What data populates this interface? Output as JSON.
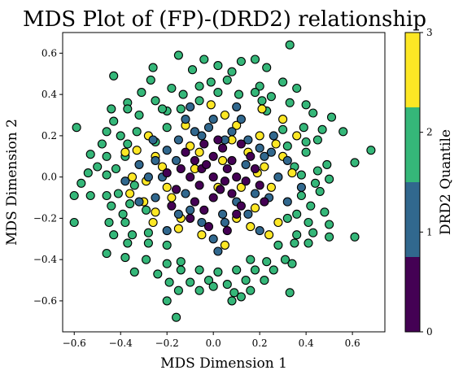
{
  "chart_data": {
    "type": "scatter",
    "title": "MDS Plot of (FP)-(DRD2) relationship",
    "xlabel": "MDS Dimension 1",
    "ylabel": "MDS Dimension 2",
    "xlim": [
      -0.65,
      0.74
    ],
    "ylim": [
      -0.75,
      0.7
    ],
    "xticks": [
      "−0.6",
      "−0.4",
      "−0.2",
      "0.0",
      "0.2",
      "0.4",
      "0.6"
    ],
    "xtick_values": [
      -0.6,
      -0.4,
      -0.2,
      0.0,
      0.2,
      0.4,
      0.6
    ],
    "yticks": [
      "−0.6",
      "−0.4",
      "−0.2",
      "0.0",
      "0.2",
      "0.4",
      "0.6"
    ],
    "ytick_values": [
      -0.6,
      -0.4,
      -0.2,
      0.0,
      0.2,
      0.4,
      0.6
    ],
    "grid": false,
    "marker_edge_color": "#000000",
    "colorbar": {
      "label": "DRD2 Quantile",
      "ticks": [
        "0",
        "1",
        "2",
        "3"
      ],
      "tick_values": [
        0,
        1,
        2,
        3
      ],
      "colors": [
        "#440154",
        "#31688e",
        "#35b779",
        "#fde725"
      ]
    },
    "points": [
      [
        0.33,
        0.64,
        2
      ],
      [
        -0.15,
        0.59,
        2
      ],
      [
        -0.04,
        0.57,
        2
      ],
      [
        0.12,
        0.56,
        2
      ],
      [
        0.18,
        0.57,
        2
      ],
      [
        -0.43,
        0.49,
        2
      ],
      [
        -0.26,
        0.53,
        2
      ],
      [
        0.02,
        0.54,
        2
      ],
      [
        0.23,
        0.53,
        2
      ],
      [
        -0.09,
        0.52,
        2
      ],
      [
        -0.27,
        0.47,
        2
      ],
      [
        -0.01,
        0.46,
        2
      ],
      [
        0.06,
        0.47,
        2
      ],
      [
        0.3,
        0.46,
        2
      ],
      [
        0.08,
        0.51,
        2
      ],
      [
        -0.31,
        0.41,
        2
      ],
      [
        -0.18,
        0.43,
        2
      ],
      [
        -0.06,
        0.44,
        2
      ],
      [
        0.2,
        0.44,
        2
      ],
      [
        0.02,
        0.41,
        2
      ],
      [
        0.36,
        0.43,
        2
      ],
      [
        -0.37,
        0.36,
        2
      ],
      [
        -0.25,
        0.37,
        2
      ],
      [
        0.11,
        0.4,
        2
      ],
      [
        0.18,
        0.41,
        2
      ],
      [
        0.25,
        0.39,
        2
      ],
      [
        -0.13,
        0.4,
        2
      ],
      [
        0.4,
        0.35,
        2
      ],
      [
        -0.44,
        0.33,
        2
      ],
      [
        -0.37,
        0.33,
        2
      ],
      [
        -0.2,
        0.32,
        2
      ],
      [
        0.33,
        0.36,
        2
      ],
      [
        0.21,
        0.37,
        2
      ],
      [
        -0.06,
        0.37,
        2
      ],
      [
        -0.32,
        0.3,
        2
      ],
      [
        -0.14,
        0.33,
        2
      ],
      [
        0.23,
        0.32,
        2
      ],
      [
        0.43,
        0.31,
        2
      ],
      [
        -0.43,
        0.27,
        2
      ],
      [
        0.51,
        0.29,
        2
      ],
      [
        -0.46,
        0.22,
        2
      ],
      [
        -0.33,
        0.22,
        2
      ],
      [
        -0.2,
        0.24,
        2
      ],
      [
        -0.59,
        0.24,
        2
      ],
      [
        0.3,
        0.23,
        2
      ],
      [
        0.39,
        0.24,
        2
      ],
      [
        0.47,
        0.23,
        2
      ],
      [
        0.56,
        0.22,
        2
      ],
      [
        -0.4,
        0.2,
        2
      ],
      [
        -0.25,
        0.17,
        2
      ],
      [
        -0.48,
        0.16,
        2
      ],
      [
        -0.37,
        0.16,
        2
      ],
      [
        0.4,
        0.17,
        2
      ],
      [
        0.45,
        0.18,
        2
      ],
      [
        -0.53,
        0.11,
        2
      ],
      [
        -0.46,
        0.1,
        2
      ],
      [
        -0.38,
        0.1,
        2
      ],
      [
        0.4,
        0.12,
        2
      ],
      [
        0.68,
        0.13,
        2
      ],
      [
        0.32,
        0.15,
        2
      ],
      [
        -0.5,
        0.05,
        2
      ],
      [
        -0.42,
        0.04,
        2
      ],
      [
        0.35,
        0.05,
        2
      ],
      [
        0.49,
        0.06,
        2
      ],
      [
        0.61,
        0.07,
        2
      ],
      [
        -0.54,
        0.02,
        2
      ],
      [
        -0.46,
        0.01,
        2
      ],
      [
        0.45,
        0.03,
        2
      ],
      [
        0.38,
        0.01,
        2
      ],
      [
        -0.57,
        -0.03,
        2
      ],
      [
        -0.34,
        -0.04,
        2
      ],
      [
        0.44,
        -0.03,
        2
      ],
      [
        0.5,
        -0.01,
        2
      ],
      [
        -0.6,
        -0.09,
        2
      ],
      [
        -0.53,
        -0.09,
        2
      ],
      [
        -0.46,
        -0.09,
        2
      ],
      [
        -0.41,
        -0.08,
        2
      ],
      [
        0.38,
        -0.09,
        2
      ],
      [
        0.46,
        -0.07,
        2
      ],
      [
        -0.44,
        -0.14,
        2
      ],
      [
        -0.36,
        -0.13,
        2
      ],
      [
        0.42,
        -0.14,
        2
      ],
      [
        0.48,
        -0.17,
        2
      ],
      [
        -0.39,
        -0.18,
        2
      ],
      [
        -0.29,
        -0.16,
        2
      ],
      [
        0.36,
        -0.18,
        2
      ],
      [
        0.32,
        -0.2,
        2
      ],
      [
        -0.6,
        -0.22,
        2
      ],
      [
        -0.45,
        -0.22,
        2
      ],
      [
        -0.38,
        -0.22,
        2
      ],
      [
        0.41,
        -0.22,
        2
      ],
      [
        0.5,
        -0.23,
        2
      ],
      [
        -0.43,
        -0.28,
        2
      ],
      [
        -0.35,
        -0.28,
        2
      ],
      [
        -0.28,
        -0.27,
        2
      ],
      [
        0.36,
        -0.28,
        2
      ],
      [
        0.43,
        -0.27,
        2
      ],
      [
        0.5,
        -0.29,
        2
      ],
      [
        0.61,
        -0.29,
        2
      ],
      [
        -0.46,
        -0.37,
        2
      ],
      [
        -0.37,
        -0.32,
        2
      ],
      [
        -0.28,
        -0.32,
        2
      ],
      [
        -0.2,
        -0.33,
        2
      ],
      [
        0.28,
        -0.33,
        2
      ],
      [
        0.35,
        -0.32,
        2
      ],
      [
        0.41,
        -0.32,
        2
      ],
      [
        -0.38,
        -0.39,
        2
      ],
      [
        -0.29,
        -0.4,
        2
      ],
      [
        -0.2,
        -0.42,
        2
      ],
      [
        -0.14,
        -0.41,
        2
      ],
      [
        0.16,
        -0.4,
        2
      ],
      [
        0.23,
        -0.41,
        2
      ],
      [
        0.31,
        -0.4,
        2
      ],
      [
        0.34,
        -0.42,
        2
      ],
      [
        -0.34,
        -0.46,
        2
      ],
      [
        -0.24,
        -0.47,
        2
      ],
      [
        -0.14,
        -0.45,
        2
      ],
      [
        -0.06,
        -0.45,
        2
      ],
      [
        0.02,
        -0.46,
        2
      ],
      [
        0.1,
        -0.45,
        2
      ],
      [
        0.18,
        -0.45,
        2
      ],
      [
        0.26,
        -0.45,
        2
      ],
      [
        -0.19,
        -0.51,
        2
      ],
      [
        -0.1,
        -0.51,
        2
      ],
      [
        -0.02,
        -0.5,
        2
      ],
      [
        0.06,
        -0.52,
        2
      ],
      [
        0.14,
        -0.5,
        2
      ],
      [
        0.22,
        -0.5,
        2
      ],
      [
        -0.15,
        -0.55,
        2
      ],
      [
        -0.06,
        -0.55,
        2
      ],
      [
        0.0,
        -0.53,
        2
      ],
      [
        0.09,
        -0.56,
        2
      ],
      [
        0.16,
        -0.55,
        2
      ],
      [
        0.33,
        -0.56,
        2
      ],
      [
        -0.2,
        -0.6,
        2
      ],
      [
        0.08,
        -0.6,
        2
      ],
      [
        0.12,
        -0.58,
        2
      ],
      [
        -0.16,
        -0.68,
        2
      ],
      [
        -0.33,
        0.13,
        3
      ],
      [
        -0.25,
        0.1,
        3
      ],
      [
        -0.35,
        0.0,
        3
      ],
      [
        -0.36,
        -0.08,
        3
      ],
      [
        -0.3,
        -0.12,
        3
      ],
      [
        -0.25,
        -0.17,
        3
      ],
      [
        -0.1,
        0.15,
        3
      ],
      [
        0.1,
        0.25,
        3
      ],
      [
        0.2,
        0.2,
        3
      ],
      [
        0.3,
        0.1,
        3
      ],
      [
        0.22,
        0.05,
        3
      ],
      [
        0.25,
        -0.05,
        3
      ],
      [
        0.18,
        -0.15,
        3
      ],
      [
        0.1,
        -0.2,
        3
      ],
      [
        -0.05,
        -0.28,
        3
      ],
      [
        -0.15,
        -0.25,
        3
      ],
      [
        0.05,
        0.3,
        3
      ],
      [
        -0.22,
        0.05,
        3
      ],
      [
        0.15,
        0.12,
        3
      ],
      [
        -0.18,
        -0.1,
        3
      ],
      [
        0.28,
        -0.22,
        3
      ],
      [
        0.3,
        0.28,
        3
      ],
      [
        -0.28,
        0.2,
        3
      ],
      [
        0.02,
        -0.05,
        3
      ],
      [
        0.34,
        0.02,
        3
      ],
      [
        -0.12,
        0.25,
        3
      ],
      [
        0.12,
        -0.05,
        3
      ],
      [
        0.08,
        0.18,
        3
      ],
      [
        -0.06,
        0.12,
        3
      ],
      [
        -0.2,
        -0.05,
        3
      ],
      [
        0.24,
        -0.28,
        3
      ],
      [
        -0.08,
        0.04,
        3
      ],
      [
        0.04,
        0.08,
        3
      ],
      [
        0.16,
        -0.24,
        3
      ],
      [
        -0.26,
        -0.22,
        3
      ],
      [
        -0.38,
        0.12,
        3
      ],
      [
        0.36,
        0.2,
        3
      ],
      [
        0.05,
        -0.33,
        3
      ],
      [
        -0.01,
        0.35,
        3
      ],
      [
        0.21,
        0.33,
        3
      ],
      [
        -0.22,
        0.33,
        2
      ],
      [
        0.27,
        0.16,
        3
      ],
      [
        -0.14,
        -0.2,
        3
      ],
      [
        0.19,
        0.02,
        3
      ],
      [
        -0.29,
        -0.02,
        3
      ],
      [
        -0.2,
        0.13,
        1
      ],
      [
        -0.15,
        0.18,
        1
      ],
      [
        -0.05,
        0.2,
        1
      ],
      [
        0.05,
        0.18,
        1
      ],
      [
        0.15,
        0.18,
        1
      ],
      [
        0.25,
        0.12,
        1
      ],
      [
        0.28,
        0.0,
        1
      ],
      [
        0.24,
        -0.1,
        1
      ],
      [
        0.15,
        -0.18,
        1
      ],
      [
        0.05,
        -0.22,
        1
      ],
      [
        -0.05,
        -0.22,
        1
      ],
      [
        -0.15,
        -0.18,
        1
      ],
      [
        -0.25,
        -0.1,
        1
      ],
      [
        -0.28,
        0.0,
        1
      ],
      [
        -0.25,
        0.08,
        1
      ],
      [
        -0.12,
        0.28,
        1
      ],
      [
        0.0,
        0.28,
        1
      ],
      [
        0.12,
        0.28,
        1
      ],
      [
        0.32,
        0.08,
        1
      ],
      [
        0.32,
        -0.12,
        1
      ],
      [
        0.2,
        -0.26,
        1
      ],
      [
        0.0,
        -0.3,
        1
      ],
      [
        -0.2,
        -0.26,
        1
      ],
      [
        -0.32,
        -0.12,
        1
      ],
      [
        -0.32,
        0.06,
        1
      ],
      [
        -0.08,
        0.22,
        1
      ],
      [
        0.08,
        0.22,
        1
      ],
      [
        0.2,
        0.14,
        1
      ],
      [
        0.18,
        -0.08,
        1
      ],
      [
        -0.1,
        -0.16,
        1
      ],
      [
        -0.22,
        0.0,
        1
      ],
      [
        0.22,
        0.1,
        1
      ],
      [
        -0.02,
        0.24,
        1
      ],
      [
        0.04,
        -0.18,
        1
      ],
      [
        -0.16,
        0.08,
        1
      ],
      [
        0.14,
        0.06,
        1
      ],
      [
        0.1,
        -0.12,
        1
      ],
      [
        -0.12,
        -0.08,
        1
      ],
      [
        0.26,
        0.2,
        1
      ],
      [
        -0.26,
        0.18,
        1
      ],
      [
        0.38,
        -0.05,
        1
      ],
      [
        -0.38,
        -0.02,
        1
      ],
      [
        0.1,
        0.34,
        1
      ],
      [
        -0.1,
        0.34,
        1
      ],
      [
        0.02,
        -0.36,
        1
      ],
      [
        -0.08,
        -0.12,
        0
      ],
      [
        0.0,
        -0.1,
        0
      ],
      [
        0.08,
        -0.08,
        0
      ],
      [
        0.1,
        0.0,
        0
      ],
      [
        0.08,
        0.08,
        0
      ],
      [
        0.0,
        0.1,
        0
      ],
      [
        -0.08,
        0.08,
        0
      ],
      [
        -0.1,
        0.0,
        0
      ],
      [
        -0.05,
        0.04,
        0
      ],
      [
        0.05,
        -0.02,
        0
      ],
      [
        0.0,
        0.0,
        0
      ],
      [
        -0.14,
        0.04,
        0
      ],
      [
        0.14,
        -0.02,
        0
      ],
      [
        -0.04,
        -0.16,
        0
      ],
      [
        0.04,
        0.14,
        0
      ],
      [
        0.12,
        -0.14,
        0
      ],
      [
        -0.12,
        0.12,
        0
      ],
      [
        -0.16,
        -0.06,
        0
      ],
      [
        0.16,
        0.1,
        0
      ],
      [
        0.03,
        -0.06,
        0
      ],
      [
        -0.03,
        0.06,
        0
      ],
      [
        0.06,
        0.04,
        0
      ],
      [
        -0.06,
        -0.04,
        0
      ],
      [
        0.12,
        0.16,
        0
      ],
      [
        -0.1,
        -0.2,
        0
      ],
      [
        0.2,
        -0.04,
        0
      ],
      [
        -0.2,
        0.02,
        0
      ],
      [
        0.02,
        0.18,
        0
      ],
      [
        -0.02,
        -0.24,
        0
      ],
      [
        0.18,
        0.04,
        0
      ],
      [
        -0.04,
        0.16,
        0
      ],
      [
        0.1,
        -0.18,
        0
      ],
      [
        -0.18,
        -0.14,
        0
      ],
      [
        0.22,
        -0.12,
        0
      ],
      [
        0.06,
        -0.26,
        0
      ]
    ]
  }
}
